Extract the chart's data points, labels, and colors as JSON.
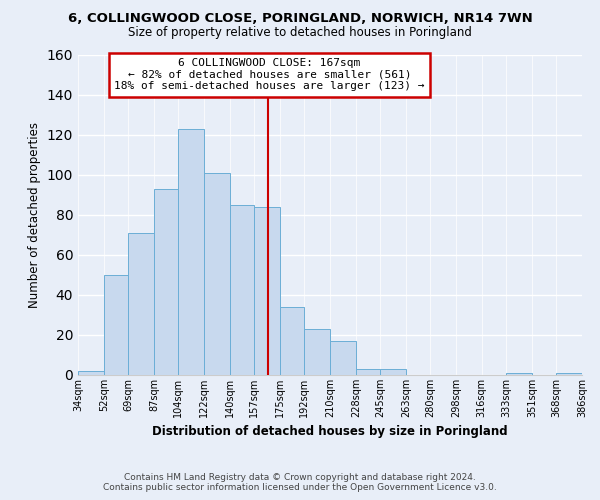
{
  "title_line1": "6, COLLINGWOOD CLOSE, PORINGLAND, NORWICH, NR14 7WN",
  "title_line2": "Size of property relative to detached houses in Poringland",
  "xlabel": "Distribution of detached houses by size in Poringland",
  "ylabel": "Number of detached properties",
  "bin_edges": [
    34,
    52,
    69,
    87,
    104,
    122,
    140,
    157,
    175,
    192,
    210,
    228,
    245,
    263,
    280,
    298,
    316,
    333,
    351,
    368,
    386
  ],
  "bin_labels": [
    "34sqm",
    "52sqm",
    "69sqm",
    "87sqm",
    "104sqm",
    "122sqm",
    "140sqm",
    "157sqm",
    "175sqm",
    "192sqm",
    "210sqm",
    "228sqm",
    "245sqm",
    "263sqm",
    "280sqm",
    "298sqm",
    "316sqm",
    "333sqm",
    "351sqm",
    "368sqm",
    "386sqm"
  ],
  "counts": [
    2,
    50,
    71,
    93,
    123,
    101,
    85,
    84,
    34,
    23,
    17,
    3,
    3,
    0,
    0,
    0,
    0,
    1,
    0,
    1
  ],
  "bar_color": "#c8d9ee",
  "bar_edge_color": "#6baed6",
  "property_line_x": 167,
  "annotation_text_line1": "6 COLLINGWOOD CLOSE: 167sqm",
  "annotation_text_line2": "← 82% of detached houses are smaller (561)",
  "annotation_text_line3": "18% of semi-detached houses are larger (123) →",
  "annotation_box_color": "#cc0000",
  "annotation_bg": "#ffffff",
  "ylim": [
    0,
    160
  ],
  "yticks": [
    0,
    20,
    40,
    60,
    80,
    100,
    120,
    140,
    160
  ],
  "footer_line1": "Contains HM Land Registry data © Crown copyright and database right 2024.",
  "footer_line2": "Contains public sector information licensed under the Open Government Licence v3.0.",
  "background_color": "#e8eef8"
}
